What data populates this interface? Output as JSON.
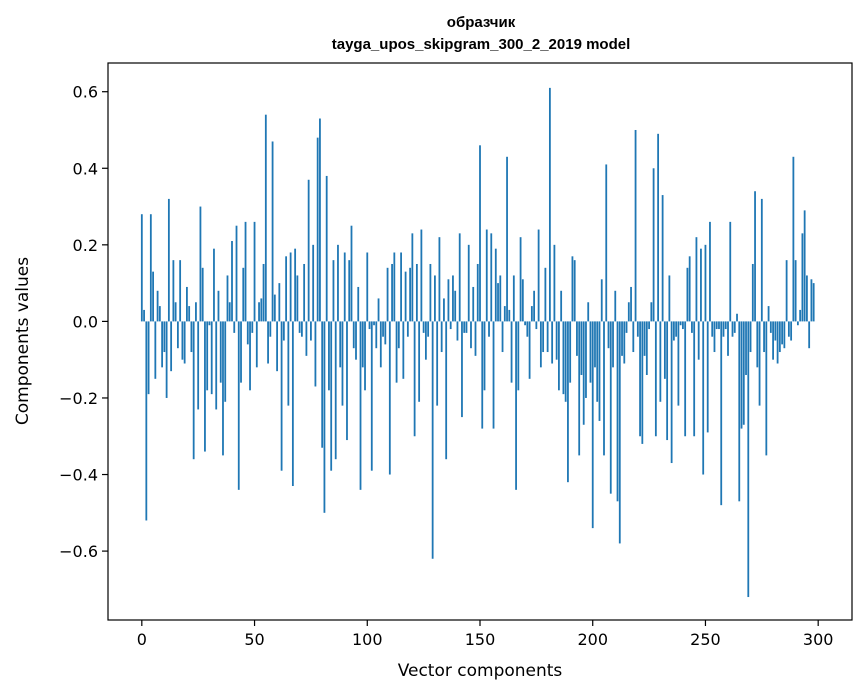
{
  "chart_data": {
    "type": "bar",
    "title": "образчик",
    "subtitle": "tayga_upos_skipgram_300_2_2019 model",
    "xlabel": "Vector components",
    "ylabel": "Components values",
    "xlim": [
      -15,
      315
    ],
    "ylim": [
      -0.78,
      0.675
    ],
    "xticks": [
      0,
      50,
      100,
      150,
      200,
      250,
      300
    ],
    "xtick_labels": [
      "0",
      "50",
      "100",
      "150",
      "200",
      "250",
      "300"
    ],
    "yticks": [
      -0.6,
      -0.4,
      -0.2,
      0.0,
      0.2,
      0.4,
      0.6
    ],
    "ytick_labels": [
      "−0.6",
      "−0.4",
      "−0.2",
      "0.0",
      "0.2",
      "0.4",
      "0.6"
    ],
    "bar_color": "#1f77b4",
    "grid": false,
    "x_start": 0,
    "values": [
      0.28,
      0.03,
      -0.52,
      -0.19,
      0.28,
      0.13,
      -0.15,
      0.08,
      0.04,
      -0.12,
      -0.08,
      -0.2,
      0.32,
      -0.13,
      0.16,
      0.05,
      -0.07,
      0.16,
      -0.1,
      -0.11,
      0.09,
      0.04,
      -0.08,
      -0.36,
      0.05,
      -0.23,
      0.3,
      0.14,
      -0.34,
      -0.18,
      -0.01,
      -0.19,
      0.19,
      -0.23,
      0.08,
      -0.16,
      -0.35,
      -0.21,
      0.12,
      0.05,
      0.21,
      -0.03,
      0.25,
      -0.44,
      -0.16,
      0.14,
      0.26,
      -0.06,
      -0.18,
      -0.03,
      0.26,
      -0.12,
      0.05,
      0.06,
      0.15,
      0.54,
      -0.11,
      -0.04,
      0.47,
      0.07,
      -0.13,
      0.1,
      -0.39,
      -0.05,
      0.17,
      -0.22,
      0.18,
      -0.43,
      0.19,
      0.12,
      -0.03,
      -0.04,
      0.15,
      -0.09,
      0.37,
      -0.05,
      0.2,
      -0.17,
      0.48,
      0.53,
      -0.33,
      -0.5,
      0.38,
      -0.18,
      -0.39,
      0.16,
      -0.36,
      0.2,
      -0.12,
      -0.22,
      0.18,
      -0.31,
      0.16,
      0.25,
      -0.07,
      -0.1,
      0.09,
      -0.44,
      -0.12,
      -0.18,
      0.18,
      -0.02,
      -0.39,
      -0.01,
      -0.07,
      0.06,
      -0.12,
      -0.04,
      -0.06,
      0.14,
      -0.4,
      0.15,
      0.18,
      -0.16,
      -0.07,
      0.18,
      -0.15,
      0.13,
      -0.04,
      0.14,
      0.23,
      -0.3,
      0.15,
      -0.21,
      0.24,
      -0.03,
      -0.1,
      -0.04,
      0.15,
      -0.62,
      0.12,
      -0.22,
      0.22,
      -0.08,
      0.06,
      -0.36,
      0.11,
      -0.02,
      0.12,
      0.08,
      -0.05,
      0.23,
      -0.25,
      -0.03,
      -0.03,
      0.2,
      -0.07,
      0.09,
      -0.09,
      0.15,
      0.46,
      -0.28,
      -0.18,
      0.24,
      -0.04,
      0.23,
      -0.28,
      0.19,
      0.1,
      0.12,
      -0.08,
      0.04,
      0.43,
      0.03,
      -0.16,
      0.12,
      -0.44,
      -0.18,
      0.22,
      0.11,
      -0.01,
      -0.04,
      -0.15,
      0.04,
      0.08,
      -0.02,
      0.24,
      -0.12,
      -0.08,
      0.14,
      -0.08,
      0.61,
      -0.11,
      0.2,
      -0.1,
      -0.18,
      0.08,
      -0.19,
      -0.21,
      -0.42,
      -0.16,
      0.17,
      0.16,
      -0.09,
      -0.35,
      -0.14,
      -0.27,
      -0.2,
      0.05,
      -0.16,
      -0.54,
      -0.12,
      -0.21,
      -0.26,
      0.11,
      -0.35,
      0.41,
      -0.07,
      -0.45,
      -0.12,
      0.08,
      -0.47,
      -0.58,
      -0.09,
      -0.11,
      -0.03,
      0.05,
      0.09,
      -0.08,
      0.5,
      -0.04,
      -0.3,
      -0.32,
      -0.09,
      -0.14,
      -0.02,
      0.05,
      0.4,
      -0.3,
      0.49,
      -0.21,
      0.33,
      -0.15,
      -0.31,
      0.12,
      -0.37,
      -0.05,
      -0.04,
      -0.22,
      -0.01,
      -0.02,
      -0.3,
      0.14,
      0.17,
      -0.03,
      -0.3,
      0.22,
      -0.1,
      0.19,
      -0.4,
      0.2,
      -0.29,
      0.26,
      -0.04,
      -0.08,
      -0.02,
      -0.02,
      -0.48,
      -0.04,
      -0.02,
      -0.09,
      0.26,
      -0.04,
      -0.03,
      0.02,
      -0.47,
      -0.28,
      -0.27,
      -0.14,
      -0.72,
      -0.08,
      0.15,
      0.34,
      -0.12,
      -0.22,
      0.32,
      -0.08,
      -0.35,
      0.04,
      -0.03,
      -0.1,
      -0.05,
      -0.11,
      -0.08,
      -0.06,
      -0.07,
      0.16,
      -0.04,
      -0.05,
      0.43,
      0.16,
      -0.01,
      0.03,
      0.23,
      0.29,
      0.12,
      -0.07,
      0.11,
      0.1,
      0.0
    ]
  }
}
